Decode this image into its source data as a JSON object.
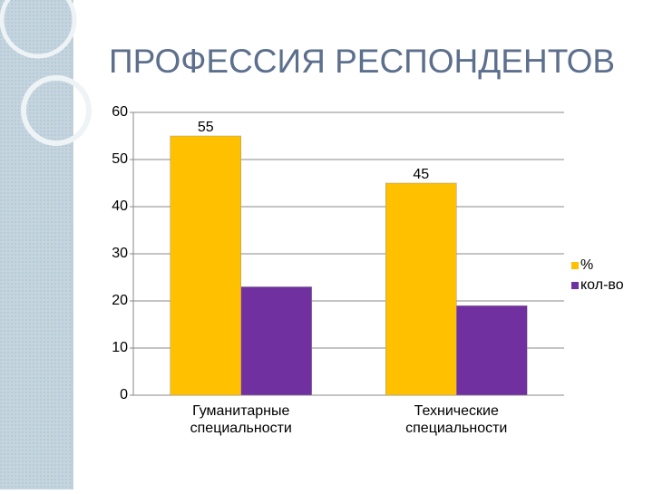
{
  "chart_data": {
    "type": "bar",
    "title": "ПРОФЕССИЯ РЕСПОНДЕНТОВ",
    "categories": [
      "Гуманитарные специальности",
      "Технические специальности"
    ],
    "series": [
      {
        "name": "%",
        "color": "#ffc000",
        "values": [
          55,
          45
        ],
        "show_values": true
      },
      {
        "name": "кол-во",
        "color": "#7030a0",
        "values": [
          23,
          19
        ],
        "show_values": false
      }
    ],
    "ylim": [
      0,
      60
    ],
    "yticks": [
      0,
      10,
      20,
      30,
      40,
      50,
      60
    ],
    "grid": true,
    "legend": "right"
  }
}
